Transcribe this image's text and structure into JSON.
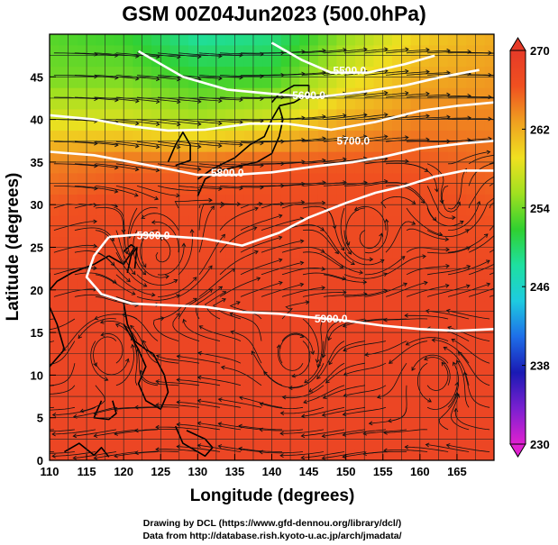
{
  "chart_data": {
    "type": "heatmap",
    "title": "GSM 00Z04Jun2023 (500.0hPa)",
    "xlabel": "Longitude (degrees)",
    "ylabel": "Latitude  (degrees)",
    "xlim": [
      110,
      170
    ],
    "ylim": [
      0,
      50
    ],
    "xticks": [
      110,
      115,
      120,
      125,
      130,
      135,
      140,
      145,
      150,
      155,
      160,
      165
    ],
    "yticks": [
      0,
      5,
      10,
      15,
      20,
      25,
      30,
      35,
      40,
      45
    ],
    "grid": true,
    "colorbar": {
      "min": 230,
      "max": 270,
      "ticks": [
        230,
        238,
        246,
        254,
        262,
        270
      ],
      "placement": "right",
      "colors": [
        "#e020d0",
        "#7a20d0",
        "#1a1ab4",
        "#1e6ee8",
        "#1ecbe0",
        "#1ee0a0",
        "#30d030",
        "#a0e020",
        "#f0e020",
        "#f0a020",
        "#f05020",
        "#e63a28"
      ]
    },
    "temperature_field_K": {
      "lon": [
        110,
        120,
        130,
        140,
        150,
        160,
        170
      ],
      "lat": [
        0,
        10,
        20,
        30,
        35,
        40,
        45,
        50
      ],
      "values": [
        [
          268,
          268,
          268,
          268,
          268,
          268,
          268
        ],
        [
          268,
          268,
          268,
          268,
          268,
          268,
          268
        ],
        [
          268,
          268,
          268,
          268,
          268,
          268,
          268
        ],
        [
          266,
          267,
          267,
          267,
          267,
          267,
          266
        ],
        [
          264,
          265,
          265,
          266,
          266,
          266,
          265
        ],
        [
          258,
          258,
          256,
          258,
          262,
          264,
          264
        ],
        [
          254,
          254,
          252,
          252,
          258,
          262,
          263
        ],
        [
          253,
          252,
          248,
          249,
          255,
          260,
          262
        ]
      ]
    },
    "height_contours": [
      {
        "label": "5500.0",
        "points": [
          [
            140,
            49
          ],
          [
            144,
            47
          ],
          [
            148,
            45.5
          ],
          [
            153,
            45.5
          ],
          [
            158,
            46.5
          ],
          [
            162,
            47.5
          ]
        ],
        "label_at": [
          150.5,
          45.7
        ]
      },
      {
        "label": "5600.0",
        "points": [
          [
            122,
            48
          ],
          [
            128,
            45
          ],
          [
            134,
            43.5
          ],
          [
            140,
            43
          ],
          [
            146,
            42.6
          ],
          [
            152,
            43.2
          ],
          [
            158,
            44
          ],
          [
            163,
            45
          ],
          [
            168,
            45.8
          ]
        ],
        "label_at": [
          145,
          42.8
        ]
      },
      {
        "label": "5700.0",
        "points": [
          [
            110,
            40.5
          ],
          [
            116,
            40
          ],
          [
            121,
            39.2
          ],
          [
            126,
            38.7
          ],
          [
            131,
            38.8
          ],
          [
            137,
            39.5
          ],
          [
            142,
            39.5
          ],
          [
            148,
            38.8
          ],
          [
            154,
            39.7
          ],
          [
            160,
            41
          ],
          [
            165,
            41.6
          ],
          [
            170,
            42
          ]
        ],
        "label_at": [
          151,
          37.5
        ]
      },
      {
        "label": "5800.0",
        "points": [
          [
            110,
            36.2
          ],
          [
            116,
            35.8
          ],
          [
            121,
            35
          ],
          [
            126,
            34.2
          ],
          [
            130,
            33.5
          ],
          [
            135,
            33.5
          ],
          [
            140,
            33.8
          ],
          [
            146,
            34.5
          ],
          [
            151,
            35
          ],
          [
            155,
            35.6
          ],
          [
            160,
            36.6
          ],
          [
            166,
            37.2
          ],
          [
            170,
            37.5
          ]
        ],
        "label_at": [
          134,
          33.7
        ]
      },
      {
        "label": "5900.0",
        "points": [
          [
            118,
            26.2
          ],
          [
            122,
            26.5
          ],
          [
            126,
            26.3
          ],
          [
            131,
            26
          ],
          [
            136,
            25.2
          ],
          [
            141,
            26.7
          ],
          [
            145,
            28.5
          ],
          [
            150,
            30.2
          ],
          [
            154,
            31.4
          ],
          [
            158,
            32.2
          ],
          [
            162,
            33.3
          ],
          [
            166,
            34
          ],
          [
            170,
            34
          ]
        ],
        "label_at": [
          124,
          26.4
        ]
      },
      {
        "label": "5900.0",
        "points": [
          [
            118,
            26.2
          ],
          [
            116,
            24
          ],
          [
            115,
            21.5
          ],
          [
            117,
            19.5
          ],
          [
            121,
            18.4
          ],
          [
            126,
            18.2
          ],
          [
            131,
            18
          ],
          [
            136,
            17.4
          ],
          [
            141,
            17.2
          ],
          [
            145,
            16.8
          ],
          [
            150,
            16.4
          ],
          [
            155,
            15.8
          ],
          [
            160,
            15.4
          ],
          [
            165,
            15.2
          ],
          [
            170,
            15.4
          ]
        ],
        "label_at": [
          148,
          16.6
        ]
      }
    ]
  },
  "footer": {
    "line1": "Drawing by DCL (https://www.gfd-dennou.org/library/dcl/)",
    "line2": "Data from http://database.rish.kyoto-u.ac.jp/arch/jmadata/"
  }
}
